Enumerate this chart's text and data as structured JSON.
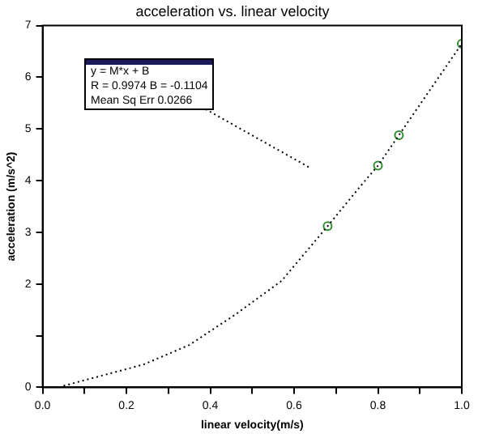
{
  "chart_data": {
    "type": "line",
    "title": "acceleration vs. linear velocity",
    "xlabel": "linear velocity(m/s)",
    "ylabel": "acceleration (m/s^2)",
    "annotations": [
      "y = M*x + B",
      "R = 0.9974 B = -0.1104",
      "Mean Sq Err 0.0266"
    ],
    "xlim": [
      0,
      1
    ],
    "xticks": [
      {
        "value": 0,
        "label": "0.0"
      },
      {
        "value": 0.1,
        "label": null
      },
      {
        "value": 0.2,
        "label": "0.2"
      },
      {
        "value": 0.3,
        "label": null
      },
      {
        "value": 0.4,
        "label": "0.4"
      },
      {
        "value": 0.5,
        "label": null
      },
      {
        "value": 0.6,
        "label": "0.6"
      },
      {
        "value": 0.7,
        "label": null
      },
      {
        "value": 0.8,
        "label": "0.8"
      },
      {
        "value": 0.9,
        "label": null
      },
      {
        "value": 1,
        "label": "1.0"
      }
    ],
    "ylim": [
      0,
      7
    ],
    "yticks": [
      0,
      {
        "value": 1,
        "label": null
      },
      2,
      3,
      4,
      5,
      6,
      7
    ],
    "grid": false,
    "legend": false,
    "series": [
      {
        "type": "line",
        "color": "#000000",
        "marker": "none",
        "line_style": "dotted",
        "x": [
          0.05,
          0.24,
          0.35,
          0.46,
          0.57,
          0.68,
          0.76,
          0.8,
          0.85,
          1.0
        ],
        "values": [
          0.03,
          0.44,
          0.82,
          1.41,
          2.06,
          3.12,
          3.91,
          4.29,
          4.88,
          6.65
        ]
      },
      {
        "type": "scatter",
        "color": "#2e8b2e",
        "marker": "circle",
        "x": [
          0.68,
          0.8,
          0.85,
          1.0
        ],
        "values": [
          3.12,
          4.29,
          4.88,
          6.65
        ]
      }
    ]
  }
}
